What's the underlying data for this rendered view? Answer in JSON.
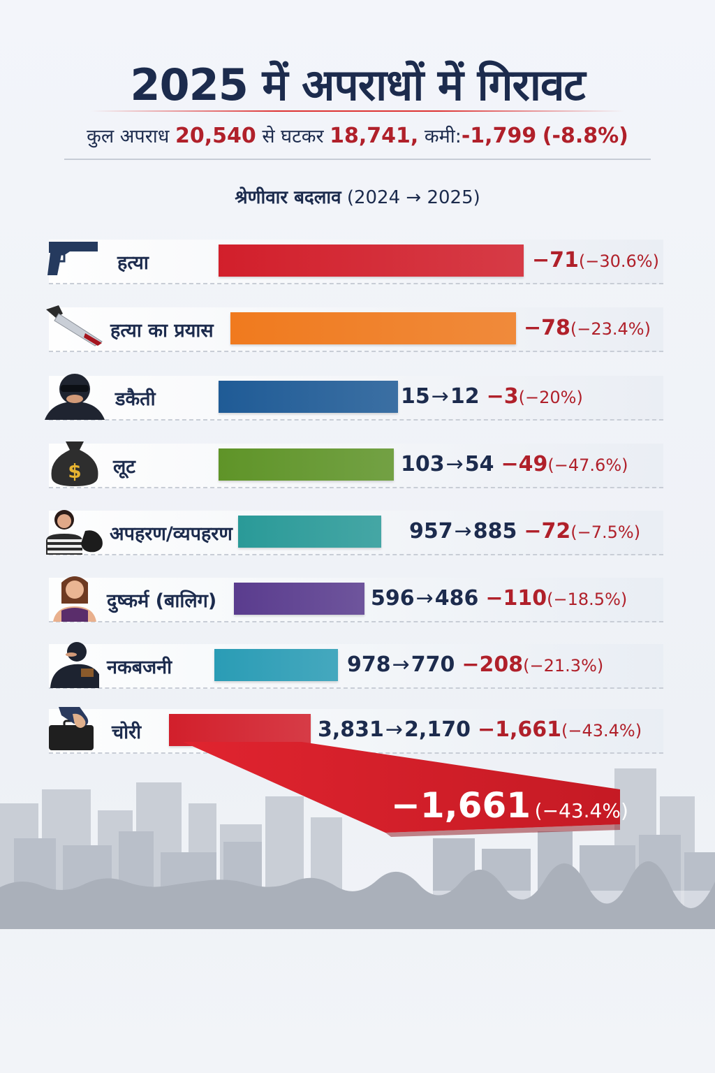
{
  "title": "2025 में अपराधों में गिरावट",
  "summary": {
    "prefix": "कुल अपराध",
    "from_value": "20,540",
    "mid": "से घटकर",
    "to_value": "18,741,",
    "change_label": "कमी:",
    "change_value": "-1,799",
    "change_pct": "(-8.8%)"
  },
  "subtitle": {
    "label": "श्रेणीवार बदलाव",
    "range": "(2024 → 2025)"
  },
  "callout": {
    "value": "−1,661",
    "pct": "(−43.4%)"
  },
  "colors": {
    "title": "#1c2b4d",
    "accent_red": "#b0202a"
  },
  "chart_data": {
    "type": "bar",
    "title": "श्रेणीवार बदलाव (2024 → 2025)",
    "categories": [
      "हत्या",
      "हत्या का प्रयास",
      "डकैती",
      "लूट",
      "अपहरण/व्यपहरण",
      "दुष्कर्म (बालिग)",
      "नकबजनी",
      "चोरी"
    ],
    "series": [
      {
        "values": [
          null,
          null,
          12,
          54,
          885,
          486,
          770,
          2170
        ]
      }
    ],
    "rows": [
      {
        "category": "हत्या",
        "icon": "pistol-icon",
        "color": "#d21f2b",
        "from": null,
        "to": null,
        "change": "−71",
        "change_value": -71,
        "pct": "(−30.6%)"
      },
      {
        "category": "हत्या का प्रयास",
        "icon": "knife-icon",
        "color": "#f07a1e",
        "from": null,
        "to": null,
        "change": "−78",
        "change_value": -78,
        "pct": "(−23.4%)"
      },
      {
        "category": "डकैती",
        "icon": "masked-robber-icon",
        "color": "#1f5b96",
        "from": "15",
        "to": "12",
        "change": "−3",
        "change_value": -3,
        "pct": "(−20%)"
      },
      {
        "category": "लूट",
        "icon": "money-bag-icon",
        "color": "#5f9428",
        "from": "103",
        "to": "54",
        "change": "−49",
        "change_value": -49,
        "pct": "(−47.6%)"
      },
      {
        "category": "अपहरण/व्यपहरण",
        "icon": "kidnapping-icon",
        "color": "#2a9a98",
        "from": "957",
        "to": "885",
        "change": "−72",
        "change_value": -72,
        "pct": "(−7.5%)"
      },
      {
        "category": "दुष्कर्म (बालिग)",
        "icon": "woman-icon",
        "color": "#5a3c8e",
        "from": "596",
        "to": "486",
        "change": "−110",
        "change_value": -110,
        "pct": "(−18.5%)"
      },
      {
        "category": "नकबजनी",
        "icon": "burglar-icon",
        "color": "#2a9cb5",
        "from": "978",
        "to": "770",
        "change": "−208",
        "change_value": -208,
        "pct": "(−21.3%)"
      },
      {
        "category": "चोरी",
        "icon": "thief-hand-bag-icon",
        "color": "#d21f2b",
        "from": "3,831",
        "to": "2,170",
        "change": "−1,661",
        "change_value": -1661,
        "pct": "(−43.4%)"
      }
    ]
  }
}
